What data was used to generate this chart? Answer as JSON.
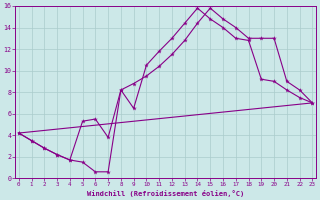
{
  "xlabel": "Windchill (Refroidissement éolien,°C)",
  "bg_color": "#cce8e8",
  "line_color": "#880088",
  "grid_color": "#aacccc",
  "xlim": [
    -0.5,
    23.5
  ],
  "ylim": [
    0,
    16
  ],
  "xticks": [
    0,
    1,
    2,
    3,
    4,
    5,
    6,
    7,
    8,
    9,
    10,
    11,
    12,
    13,
    14,
    15,
    16,
    17,
    18,
    19,
    20,
    21,
    22,
    23
  ],
  "yticks": [
    0,
    2,
    4,
    6,
    8,
    10,
    12,
    14,
    16
  ],
  "line1_x": [
    0,
    1,
    2,
    3,
    4,
    5,
    6,
    7,
    8,
    9,
    10,
    11,
    12,
    13,
    14,
    15,
    16,
    17,
    18,
    19,
    20,
    21,
    22,
    23
  ],
  "line1_y": [
    4.2,
    3.5,
    2.8,
    2.2,
    1.7,
    1.5,
    0.6,
    0.6,
    8.2,
    6.5,
    10.5,
    11.8,
    13.0,
    14.4,
    15.8,
    14.8,
    14.0,
    13.0,
    12.8,
    9.2,
    9.0,
    8.2,
    7.5,
    7.0
  ],
  "line2_x": [
    0,
    1,
    2,
    3,
    4,
    5,
    6,
    7,
    8,
    9,
    10,
    11,
    12,
    13,
    14,
    15,
    16,
    17,
    18,
    19,
    20,
    21,
    22,
    23
  ],
  "line2_y": [
    4.2,
    3.5,
    2.8,
    2.2,
    1.7,
    5.3,
    5.5,
    3.8,
    8.2,
    8.8,
    9.5,
    10.4,
    11.5,
    12.8,
    14.4,
    15.8,
    14.8,
    14.0,
    13.0,
    13.0,
    13.0,
    9.0,
    8.2,
    7.0
  ],
  "line3_x": [
    0,
    23
  ],
  "line3_y": [
    4.2,
    7.0
  ]
}
